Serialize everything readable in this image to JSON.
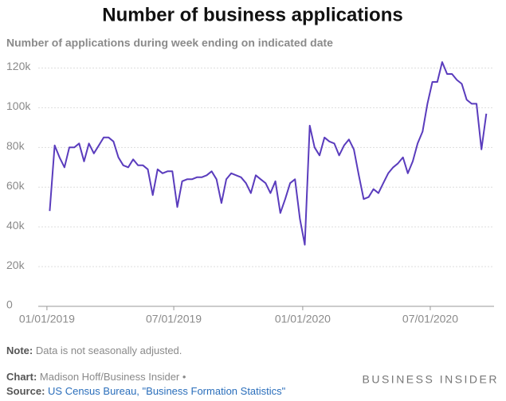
{
  "chart_data": {
    "type": "line",
    "title": "Number of business applications",
    "subtitle": "Number of applications during week ending on indicated date",
    "x": [
      "2019-01-05",
      "2019-01-12",
      "2019-01-19",
      "2019-01-26",
      "2019-02-02",
      "2019-02-09",
      "2019-02-16",
      "2019-02-23",
      "2019-03-02",
      "2019-03-09",
      "2019-03-16",
      "2019-03-23",
      "2019-03-30",
      "2019-04-06",
      "2019-04-13",
      "2019-04-20",
      "2019-04-27",
      "2019-05-04",
      "2019-05-11",
      "2019-05-18",
      "2019-05-25",
      "2019-06-01",
      "2019-06-08",
      "2019-06-15",
      "2019-06-22",
      "2019-06-29",
      "2019-07-06",
      "2019-07-13",
      "2019-07-20",
      "2019-07-27",
      "2019-08-03",
      "2019-08-10",
      "2019-08-17",
      "2019-08-24",
      "2019-08-31",
      "2019-09-07",
      "2019-09-14",
      "2019-09-21",
      "2019-09-28",
      "2019-10-05",
      "2019-10-12",
      "2019-10-19",
      "2019-10-26",
      "2019-11-02",
      "2019-11-09",
      "2019-11-16",
      "2019-11-23",
      "2019-11-30",
      "2019-12-07",
      "2019-12-14",
      "2019-12-21",
      "2019-12-28",
      "2020-01-04",
      "2020-01-11",
      "2020-01-18",
      "2020-01-25",
      "2020-02-01",
      "2020-02-08",
      "2020-02-15",
      "2020-02-22",
      "2020-02-29",
      "2020-03-07",
      "2020-03-14",
      "2020-03-21",
      "2020-03-28",
      "2020-04-04",
      "2020-04-11",
      "2020-04-18",
      "2020-04-25",
      "2020-05-02",
      "2020-05-09",
      "2020-05-16",
      "2020-05-23",
      "2020-05-30",
      "2020-06-06",
      "2020-06-13",
      "2020-06-20",
      "2020-06-27",
      "2020-07-04",
      "2020-07-11",
      "2020-07-18",
      "2020-07-25",
      "2020-08-01",
      "2020-08-08",
      "2020-08-15",
      "2020-08-22",
      "2020-08-29",
      "2020-09-05",
      "2020-09-12",
      "2020-09-19"
    ],
    "values": [
      48000,
      81000,
      75000,
      70000,
      80000,
      80000,
      82000,
      73000,
      82000,
      77000,
      81000,
      85000,
      85000,
      83000,
      75000,
      71000,
      70000,
      74000,
      71000,
      71000,
      69000,
      56000,
      69000,
      67000,
      68000,
      68000,
      50000,
      63000,
      64000,
      64000,
      65000,
      65000,
      66000,
      68000,
      64000,
      52000,
      64000,
      67000,
      66000,
      65000,
      62000,
      57000,
      66000,
      64000,
      62000,
      57000,
      63000,
      47000,
      54000,
      62000,
      64000,
      44000,
      31000,
      91000,
      80000,
      76000,
      85000,
      83000,
      82000,
      76000,
      81000,
      84000,
      79000,
      66000,
      54000,
      55000,
      59000,
      57000,
      62000,
      67000,
      70000,
      72000,
      75000,
      67000,
      73000,
      82000,
      88000,
      102000,
      113000,
      113000,
      123000,
      117000,
      117000,
      114000,
      112000,
      104000,
      102000,
      102000,
      79000,
      97000
    ],
    "color": "#5a3cbd",
    "xlim": [
      "2018-12-31",
      "2020-09-30"
    ],
    "xticks": [
      {
        "value": "2019-01-01",
        "label": "01/01/2019"
      },
      {
        "value": "2019-07-01",
        "label": "07/01/2019"
      },
      {
        "value": "2020-01-01",
        "label": "01/01/2020"
      },
      {
        "value": "2020-07-01",
        "label": "07/01/2020"
      }
    ],
    "ylim": [
      0,
      125000
    ],
    "yticks": [
      0,
      {
        "value": 20000,
        "label": "20k"
      },
      {
        "value": 40000,
        "label": "40k"
      },
      {
        "value": 60000,
        "label": "60k"
      },
      {
        "value": 80000,
        "label": "80k"
      },
      {
        "value": 100000,
        "label": "100k"
      },
      {
        "value": 120000,
        "label": "120k"
      }
    ],
    "grid": true,
    "note_label": "Note:",
    "note": "Data is not seasonally adjusted.",
    "chart_label": "Chart:",
    "chart_credit": "Madison Hoff/Business Insider •",
    "source_label": "Source:",
    "source": "US Census Bureau, \"Business Formation Statistics\"",
    "logo": "BUSINESS INSIDER"
  }
}
